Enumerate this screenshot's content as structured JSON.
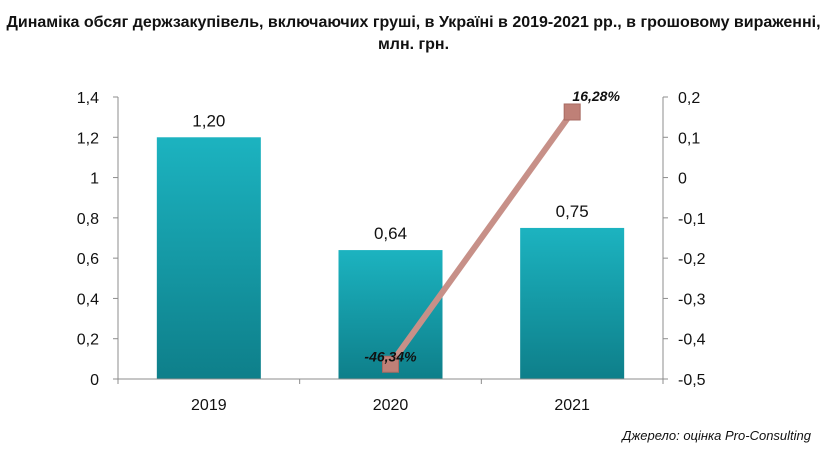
{
  "chart_data": {
    "type": "bar",
    "title": "Динаміка обсяг держзакупівель, включаючих груші, в Україні в 2019-2021 рр., в грошовому вираженні, млн. грн.",
    "source": "Джерело: оцінка Pro-Consulting",
    "categories": [
      "2019",
      "2020",
      "2021"
    ],
    "series": [
      {
        "type": "bar",
        "axis": "left",
        "values": [
          1.2,
          0.64,
          0.75
        ],
        "value_labels": [
          "1,20",
          "0,64",
          "0,75"
        ],
        "color": "#17a2b0"
      },
      {
        "type": "line",
        "axis": "right",
        "x": [
          "2020",
          "2021"
        ],
        "values": [
          -0.4634,
          0.1628
        ],
        "value_labels": [
          "-46,34%",
          "16,28%"
        ],
        "color": "#c79088"
      }
    ],
    "y_left": {
      "ylim": [
        0,
        1.4
      ],
      "ticks": [
        0,
        0.2,
        0.4,
        0.6,
        0.8,
        1,
        1.2,
        1.4
      ],
      "tick_labels": [
        "0",
        "0,2",
        "0,4",
        "0,6",
        "0,8",
        "1",
        "1,2",
        "1,4"
      ]
    },
    "y_right": {
      "ylim": [
        -0.5,
        0.2
      ],
      "ticks": [
        -0.5,
        -0.4,
        -0.3,
        -0.2,
        -0.1,
        0,
        0.1,
        0.2
      ],
      "tick_labels": [
        "-0,5",
        "-0,4",
        "-0,3",
        "-0,2",
        "-0,1",
        "0",
        "0,1",
        "0,2"
      ]
    },
    "grid": false,
    "legend": "none"
  }
}
